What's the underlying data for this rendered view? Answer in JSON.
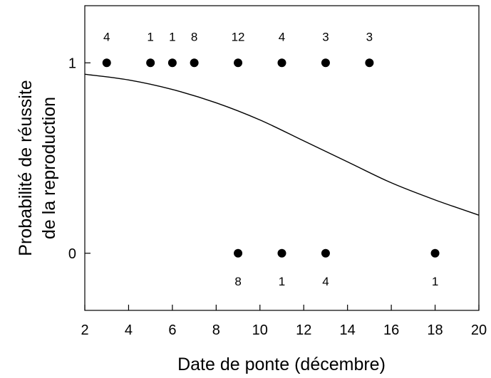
{
  "chart_data": {
    "type": "scatter",
    "title": "",
    "xlabel": "Date de ponte (décembre)",
    "ylabel_lines": [
      "Probabilité de réussite",
      "de la reproduction"
    ],
    "xlim": [
      2,
      20
    ],
    "ylim": [
      -0.3,
      1.3
    ],
    "x_ticks": [
      2,
      4,
      6,
      8,
      10,
      12,
      14,
      16,
      18,
      20
    ],
    "x_tick_labels": [
      "2",
      "4",
      "6",
      "8",
      "10",
      "12",
      "14",
      "16",
      "18",
      "20"
    ],
    "y_ticks": [
      0,
      1
    ],
    "y_tick_labels": [
      "0",
      "1"
    ],
    "grid": false,
    "points": [
      {
        "x": 3,
        "y": 1,
        "n": "4"
      },
      {
        "x": 5,
        "y": 1,
        "n": "1"
      },
      {
        "x": 6,
        "y": 1,
        "n": "1"
      },
      {
        "x": 7,
        "y": 1,
        "n": "8"
      },
      {
        "x": 9,
        "y": 1,
        "n": "12"
      },
      {
        "x": 11,
        "y": 1,
        "n": "4"
      },
      {
        "x": 13,
        "y": 1,
        "n": "3"
      },
      {
        "x": 15,
        "y": 1,
        "n": "3"
      },
      {
        "x": 9,
        "y": 0,
        "n": "8"
      },
      {
        "x": 11,
        "y": 0,
        "n": "1"
      },
      {
        "x": 13,
        "y": 0,
        "n": "4"
      },
      {
        "x": 18,
        "y": 0,
        "n": "1"
      }
    ],
    "fitted_curve": {
      "type": "logistic",
      "x": [
        2,
        4,
        6,
        8,
        10,
        12,
        14,
        16,
        18,
        20
      ],
      "y": [
        0.94,
        0.91,
        0.86,
        0.79,
        0.7,
        0.59,
        0.48,
        0.37,
        0.28,
        0.2
      ]
    },
    "colors": {
      "points": "#000000",
      "curve": "#000000"
    }
  }
}
